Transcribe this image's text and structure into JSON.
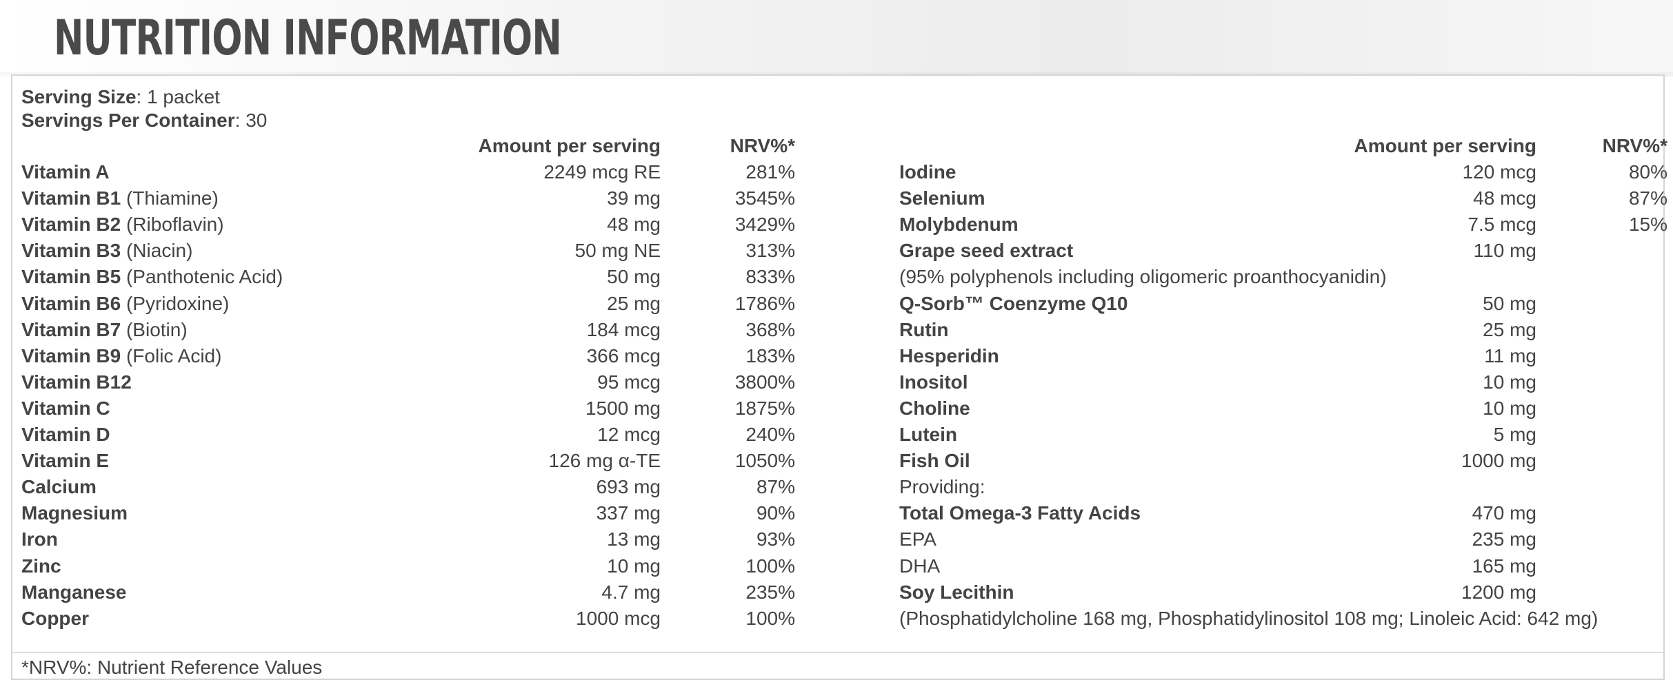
{
  "title": "NUTRITION INFORMATION",
  "serving": {
    "size_label": "Serving Size",
    "size_value": ": 1 packet",
    "per_container_label": "Servings Per Container",
    "per_container_value": ": 30"
  },
  "headers": {
    "left_amount": "Amount per serving",
    "left_nrv": "NRV%*",
    "right_amount": "Amount per serving",
    "right_nrv": "NRV%*"
  },
  "left_rows": [
    {
      "name": "Vitamin A",
      "extra": "",
      "amount": "2249 mcg RE",
      "nrv": "281%"
    },
    {
      "name": "Vitamin B1",
      "extra": " (Thiamine)",
      "amount": "39 mg",
      "nrv": "3545%"
    },
    {
      "name": "Vitamin B2",
      "extra": " (Riboflavin)",
      "amount": "48 mg",
      "nrv": "3429%"
    },
    {
      "name": "Vitamin B3",
      "extra": " (Niacin)",
      "amount": "50 mg NE",
      "nrv": "313%"
    },
    {
      "name": "Vitamin B5",
      "extra": " (Panthotenic Acid)",
      "amount": "50 mg",
      "nrv": "833%"
    },
    {
      "name": "Vitamin B6",
      "extra": " (Pyridoxine)",
      "amount": "25 mg",
      "nrv": "1786%"
    },
    {
      "name": "Vitamin B7",
      "extra": " (Biotin)",
      "amount": "184 mcg",
      "nrv": "368%"
    },
    {
      "name": "Vitamin B9",
      "extra": " (Folic Acid)",
      "amount": "366 mcg",
      "nrv": "183%"
    },
    {
      "name": "Vitamin B12",
      "extra": "",
      "amount": "95 mcg",
      "nrv": "3800%"
    },
    {
      "name": "Vitamin C",
      "extra": "",
      "amount": "1500 mg",
      "nrv": "1875%"
    },
    {
      "name": "Vitamin D",
      "extra": "",
      "amount": "12 mcg",
      "nrv": "240%"
    },
    {
      "name": "Vitamin E",
      "extra": "",
      "amount": "126 mg α-TE",
      "nrv": "1050%"
    },
    {
      "name": "Calcium",
      "extra": "",
      "amount": "693 mg",
      "nrv": "87%"
    },
    {
      "name": "Magnesium",
      "extra": "",
      "amount": "337 mg",
      "nrv": "90%"
    },
    {
      "name": "Iron",
      "extra": "",
      "amount": "13 mg",
      "nrv": "93%"
    },
    {
      "name": "Zinc",
      "extra": "",
      "amount": "10 mg",
      "nrv": "100%"
    },
    {
      "name": "Manganese",
      "extra": "",
      "amount": "4.7 mg",
      "nrv": "235%"
    },
    {
      "name": "Copper",
      "extra": "",
      "amount": "1000 mcg",
      "nrv": "100%"
    }
  ],
  "right_rows": [
    {
      "name": "Iodine",
      "bold": true,
      "amount": "120 mcg",
      "nrv": "80%"
    },
    {
      "name": "Selenium",
      "bold": true,
      "amount": "48 mcg",
      "nrv": "87%"
    },
    {
      "name": "Molybdenum",
      "bold": true,
      "amount": "7.5 mcg",
      "nrv": "15%"
    },
    {
      "name": "Grape seed extract",
      "bold": true,
      "amount": "110 mg",
      "nrv": ""
    },
    {
      "name": "(95% polyphenols including oligomeric proanthocyanidin)",
      "bold": false,
      "amount": "",
      "nrv": ""
    },
    {
      "name": "Q-Sorb™ Coenzyme Q10",
      "bold": true,
      "amount": "50 mg",
      "nrv": ""
    },
    {
      "name": "Rutin",
      "bold": true,
      "amount": "25 mg",
      "nrv": ""
    },
    {
      "name": "Hesperidin",
      "bold": true,
      "amount": "11 mg",
      "nrv": ""
    },
    {
      "name": "Inositol",
      "bold": true,
      "amount": "10 mg",
      "nrv": ""
    },
    {
      "name": "Choline",
      "bold": true,
      "amount": "10 mg",
      "nrv": ""
    },
    {
      "name": "Lutein",
      "bold": true,
      "amount": "5 mg",
      "nrv": ""
    },
    {
      "name": "Fish Oil",
      "bold": true,
      "amount": "1000 mg",
      "nrv": ""
    },
    {
      "name": "Providing:",
      "bold": false,
      "amount": "",
      "nrv": ""
    },
    {
      "name": "Total Omega-3 Fatty Acids",
      "bold": true,
      "amount": "470 mg",
      "nrv": ""
    },
    {
      "name": "EPA",
      "bold": false,
      "amount": "235 mg",
      "nrv": ""
    },
    {
      "name": "DHA",
      "bold": false,
      "amount": "165 mg",
      "nrv": ""
    },
    {
      "name": "Soy Lecithin",
      "bold": true,
      "amount": "1200 mg",
      "nrv": ""
    },
    {
      "name": "(Phosphatidylcholine 168 mg, Phosphatidylinositol 108 mg; Linoleic Acid: 642 mg)",
      "bold": false,
      "amount": "",
      "nrv": ""
    }
  ],
  "footnote": "*NRV%: Nutrient Reference Values"
}
